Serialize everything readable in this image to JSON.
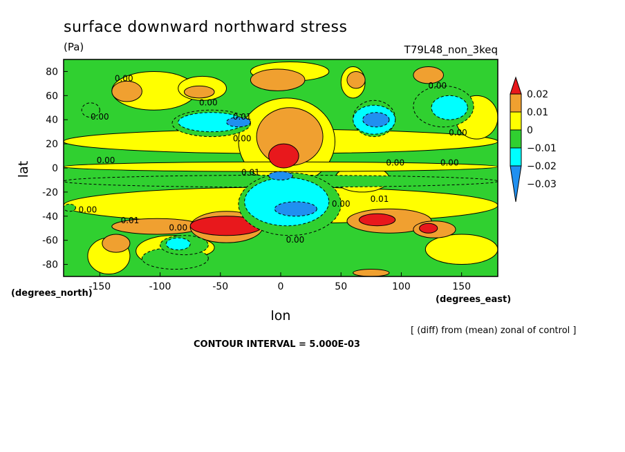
{
  "title": "surface downward northward stress",
  "units": "(Pa)",
  "run_label": "T79L48_non_3keq",
  "note": "[ (diff) from (mean) zonal of control ]",
  "contour_interval": "CONTOUR INTERVAL = 5.000E-03",
  "chart_data": {
    "type": "heatmap",
    "title": "surface downward northward stress",
    "xlabel": "lon",
    "ylabel": "lat",
    "x_units": "(degrees_east)",
    "y_units": "(degrees_north)",
    "xlim": [
      -180,
      180
    ],
    "ylim": [
      -90,
      90
    ],
    "x_ticks": [
      -150,
      -100,
      -50,
      0,
      50,
      100,
      150
    ],
    "y_ticks": [
      80,
      60,
      40,
      20,
      0,
      -20,
      -40,
      -60,
      -80
    ],
    "colorbar": {
      "labels": [
        "0.02",
        "0.01",
        "0",
        "−0.01",
        "−0.02",
        "−0.03"
      ],
      "levels": [
        0.02,
        0.01,
        0,
        -0.01,
        -0.02,
        -0.03
      ],
      "colors": [
        "#e8181c",
        "#f0a030",
        "#ffff00",
        "#30d030",
        "#00ffff",
        "#2090f0"
      ]
    },
    "contour_labels": [
      {
        "text": "0.00",
        "lon": -130,
        "lat": 72
      },
      {
        "text": "0.00",
        "lon": -150,
        "lat": 40
      },
      {
        "text": "0.00",
        "lon": -60,
        "lat": 52
      },
      {
        "text": "0.01",
        "lon": -32,
        "lat": 40
      },
      {
        "text": "0.00",
        "lon": -32,
        "lat": 22
      },
      {
        "text": "0.00",
        "lon": -145,
        "lat": 4
      },
      {
        "text": "0.00",
        "lon": 95,
        "lat": 2
      },
      {
        "text": "0.00",
        "lon": 140,
        "lat": 2
      },
      {
        "text": "0.00",
        "lon": 130,
        "lat": 66
      },
      {
        "text": "0.00",
        "lon": 147,
        "lat": 27
      },
      {
        "text": "0.01",
        "lon": -25,
        "lat": -6
      },
      {
        "text": "0.00",
        "lon": -160,
        "lat": -37
      },
      {
        "text": "0.01",
        "lon": -125,
        "lat": -46
      },
      {
        "text": "0.00",
        "lon": -85,
        "lat": -52
      },
      {
        "text": "0.01",
        "lon": 82,
        "lat": -28
      },
      {
        "text": "0.00",
        "lon": 50,
        "lat": -32
      },
      {
        "text": "0.00",
        "lon": 12,
        "lat": -62
      }
    ],
    "regions": [
      {
        "value": 0,
        "lon": [
          -180,
          180
        ],
        "lat": [
          12,
          32
        ]
      },
      {
        "value": 0,
        "lon": [
          -180,
          180
        ],
        "lat": [
          -46,
          -16
        ]
      },
      {
        "value": 0,
        "lon": [
          -160,
          -125
        ],
        "lat": [
          -88,
          -58
        ]
      },
      {
        "value": 0,
        "lon": [
          -120,
          -60
        ],
        "lat": [
          -82,
          -56
        ]
      },
      {
        "value": 0,
        "lon": [
          -95,
          -55
        ],
        "lat": [
          -74,
          -58
        ]
      },
      {
        "value": 0,
        "lon": [
          120,
          180
        ],
        "lat": [
          -80,
          -55
        ]
      },
      {
        "value": 0,
        "lon": [
          -140,
          -70
        ],
        "lat": [
          48,
          80
        ]
      },
      {
        "value": 0,
        "lon": [
          -85,
          -45
        ],
        "lat": [
          56,
          76
        ]
      },
      {
        "value": 0,
        "lon": [
          -25,
          40
        ],
        "lat": [
          72,
          88
        ]
      },
      {
        "value": 0,
        "lon": [
          50,
          70
        ],
        "lat": [
          58,
          84
        ]
      },
      {
        "value": 0,
        "lon": [
          145,
          180
        ],
        "lat": [
          24,
          60
        ]
      },
      {
        "value": 0,
        "lon": [
          -35,
          45
        ],
        "lat": [
          -14,
          58
        ]
      },
      {
        "value": 0,
        "lon": [
          45,
          90
        ],
        "lat": [
          -20,
          2
        ]
      },
      {
        "value": -0.01,
        "lon": [
          -180,
          180
        ],
        "lat": [
          -16,
          -6
        ]
      },
      {
        "value": -0.01,
        "lon": [
          -115,
          -60
        ],
        "lat": [
          -84,
          -66
        ]
      },
      {
        "value": 0,
        "lon": [
          -180,
          180
        ],
        "lat": [
          -3,
          5
        ]
      },
      {
        "value": 0.01,
        "lon": [
          -20,
          35
        ],
        "lat": [
          2,
          50
        ]
      },
      {
        "value": 0.01,
        "lon": [
          -148,
          -125
        ],
        "lat": [
          -70,
          -55
        ]
      },
      {
        "value": 0.01,
        "lon": [
          -140,
          -65
        ],
        "lat": [
          -55,
          -42
        ]
      },
      {
        "value": 0.01,
        "lon": [
          -75,
          -15
        ],
        "lat": [
          -62,
          -36
        ]
      },
      {
        "value": 0.01,
        "lon": [
          55,
          125
        ],
        "lat": [
          -54,
          -34
        ]
      },
      {
        "value": 0.01,
        "lon": [
          110,
          145
        ],
        "lat": [
          -58,
          -44
        ]
      },
      {
        "value": 0.01,
        "lon": [
          -140,
          -115
        ],
        "lat": [
          55,
          72
        ]
      },
      {
        "value": 0.01,
        "lon": [
          -80,
          -55
        ],
        "lat": [
          58,
          68
        ]
      },
      {
        "value": 0.01,
        "lon": [
          -25,
          20
        ],
        "lat": [
          64,
          82
        ]
      },
      {
        "value": 0.01,
        "lon": [
          55,
          70
        ],
        "lat": [
          66,
          80
        ]
      },
      {
        "value": 0.01,
        "lon": [
          110,
          135
        ],
        "lat": [
          70,
          84
        ]
      },
      {
        "value": 0.01,
        "lon": [
          60,
          90
        ],
        "lat": [
          -90,
          -84
        ]
      },
      {
        "value": 0.02,
        "lon": [
          -10,
          15
        ],
        "lat": [
          0,
          20
        ]
      },
      {
        "value": 0.02,
        "lon": [
          -75,
          -15
        ],
        "lat": [
          -56,
          -40
        ]
      },
      {
        "value": 0.02,
        "lon": [
          65,
          95
        ],
        "lat": [
          -48,
          -38
        ]
      },
      {
        "value": 0.02,
        "lon": [
          115,
          130
        ],
        "lat": [
          -54,
          -46
        ]
      },
      {
        "value": -0.01,
        "lon": [
          -35,
          50
        ],
        "lat": [
          -56,
          -4
        ]
      },
      {
        "value": -0.02,
        "lon": [
          -30,
          40
        ],
        "lat": [
          -48,
          -8
        ]
      },
      {
        "value": -0.03,
        "lon": [
          -5,
          30
        ],
        "lat": [
          -40,
          -28
        ]
      },
      {
        "value": -0.03,
        "lon": [
          -10,
          10
        ],
        "lat": [
          -10,
          -3
        ]
      },
      {
        "value": -0.01,
        "lon": [
          -100,
          -60
        ],
        "lat": [
          -72,
          -56
        ]
      },
      {
        "value": -0.02,
        "lon": [
          -95,
          -75
        ],
        "lat": [
          -68,
          -58
        ]
      },
      {
        "value": -0.01,
        "lon": [
          -90,
          -25
        ],
        "lat": [
          26,
          48
        ]
      },
      {
        "value": -0.02,
        "lon": [
          -85,
          -30
        ],
        "lat": [
          30,
          46
        ]
      },
      {
        "value": -0.03,
        "lon": [
          -45,
          -25
        ],
        "lat": [
          34,
          42
        ]
      },
      {
        "value": -0.01,
        "lon": [
          60,
          95
        ],
        "lat": [
          26,
          56
        ]
      },
      {
        "value": -0.02,
        "lon": [
          60,
          95
        ],
        "lat": [
          28,
          52
        ]
      },
      {
        "value": -0.03,
        "lon": [
          68,
          90
        ],
        "lat": [
          34,
          46
        ]
      },
      {
        "value": -0.01,
        "lon": [
          110,
          160
        ],
        "lat": [
          34,
          68
        ]
      },
      {
        "value": -0.02,
        "lon": [
          125,
          155
        ],
        "lat": [
          40,
          60
        ]
      },
      {
        "value": -0.01,
        "lon": [
          -165,
          -150
        ],
        "lat": [
          42,
          54
        ]
      },
      {
        "value": -0.01,
        "lon": [
          -180,
          -170
        ],
        "lat": [
          -36,
          -30
        ]
      }
    ]
  }
}
